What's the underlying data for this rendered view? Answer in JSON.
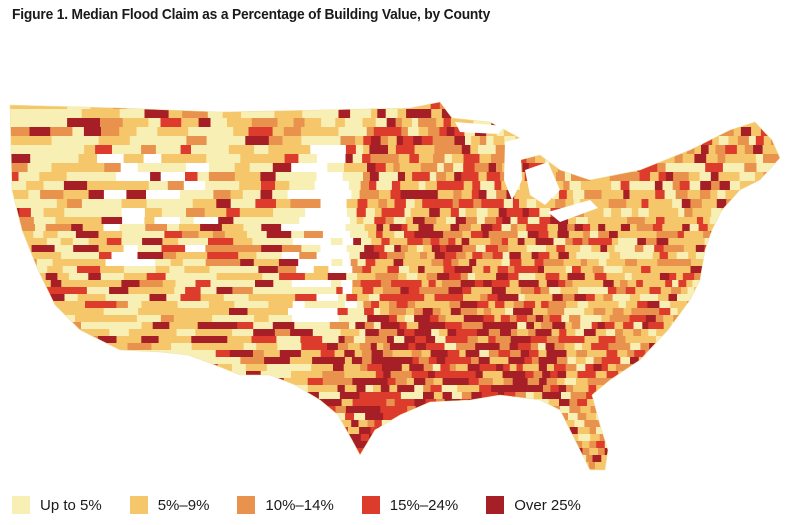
{
  "title": "Figure 1. Median Flood Claim as a Percentage of Building Value, by County",
  "legend": [
    {
      "label": "Up to 5%",
      "color": "#f8efb4"
    },
    {
      "label": "5%–9%",
      "color": "#f5c76a"
    },
    {
      "label": "10%–14%",
      "color": "#e8924e"
    },
    {
      "label": "15%–24%",
      "color": "#dd3c2c"
    },
    {
      "label": "Over 25%",
      "color": "#a61e26"
    }
  ]
}
